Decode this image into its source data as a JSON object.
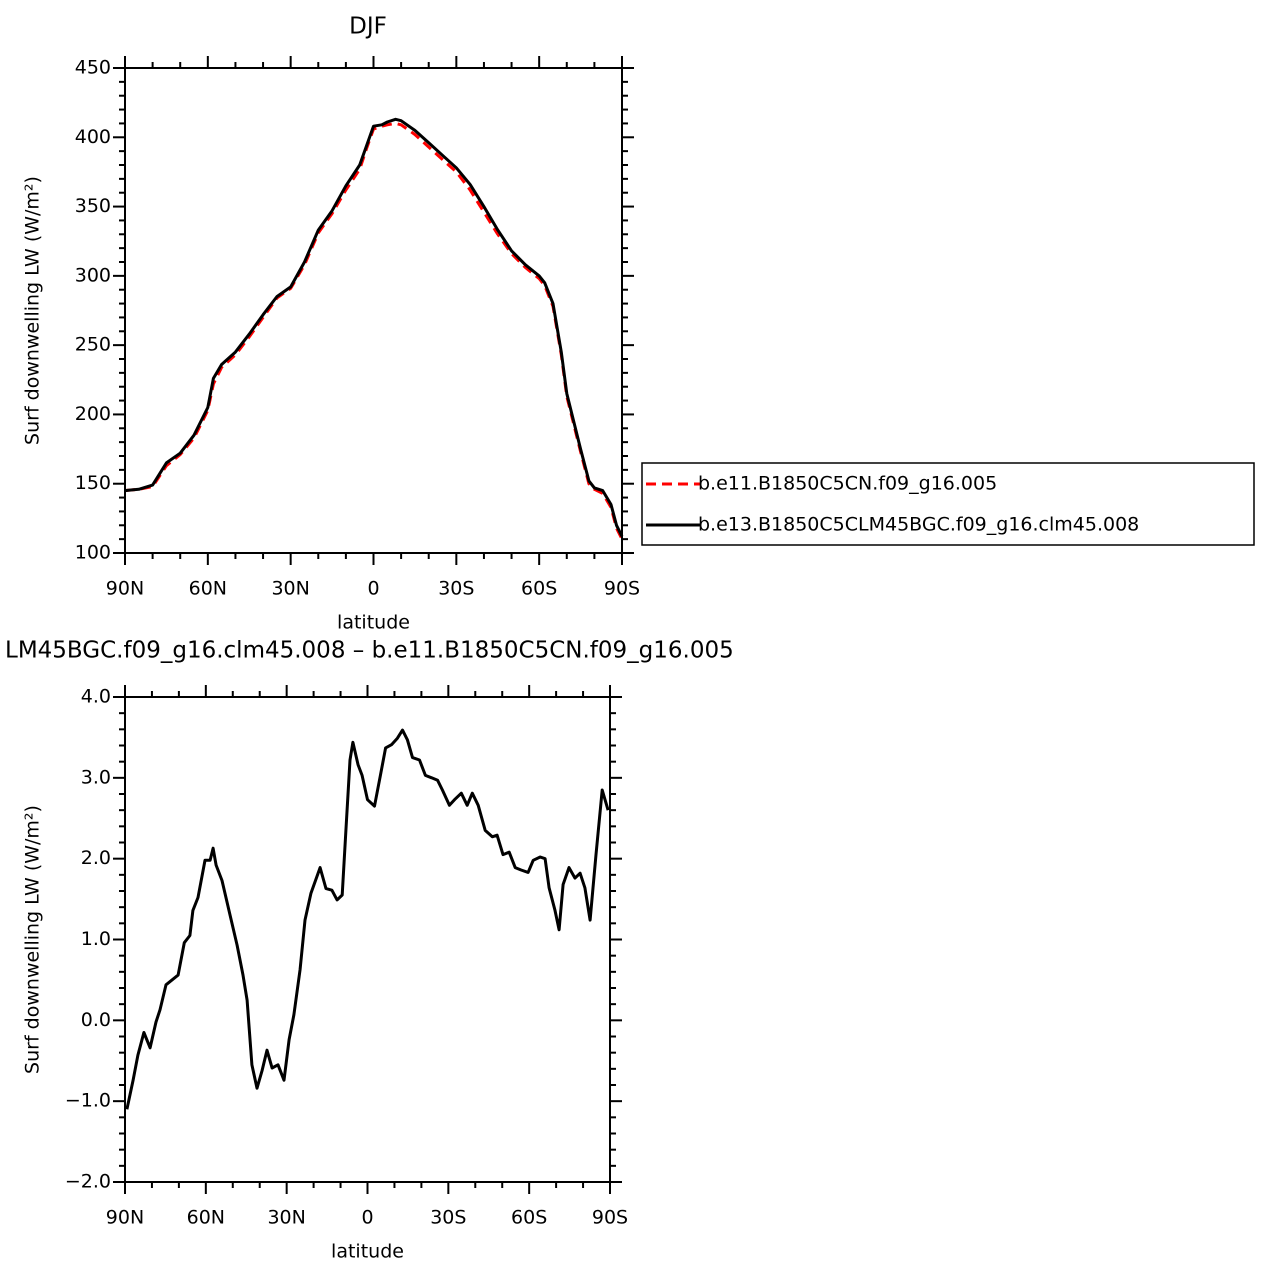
{
  "chart_data": [
    {
      "type": "line",
      "title": "DJF",
      "xlabel": "latitude",
      "ylabel": "Surf downwelling LW (W/m²)",
      "x": [
        90,
        85,
        80,
        75,
        70,
        65,
        60,
        58,
        55,
        50,
        45,
        40,
        35,
        30,
        25,
        20,
        15,
        10,
        5,
        2.5,
        0,
        -3,
        -5,
        -8,
        -10,
        -15,
        -20,
        -25,
        -30,
        -35,
        -40,
        -45,
        -50,
        -55,
        -60,
        -62,
        -65,
        -68,
        -70,
        -75,
        -78,
        -80,
        -83,
        -86,
        -88,
        -90
      ],
      "xlim": [
        90,
        -90
      ],
      "xticks": [
        {
          "value": 90,
          "label": "90N"
        },
        {
          "value": 60,
          "label": "60N"
        },
        {
          "value": 30,
          "label": "30N"
        },
        0,
        {
          "value": -30,
          "label": "30S"
        },
        {
          "value": -60,
          "label": "60S"
        },
        {
          "value": -90,
          "label": "90S"
        }
      ],
      "ylim": [
        100,
        450
      ],
      "yticks": [
        100,
        150,
        200,
        250,
        300,
        350,
        400,
        450
      ],
      "series": [
        {
          "name": "b.e11.B1850C5CN.f09_g16.005",
          "color": "#ff0000",
          "linestyle": "dashed",
          "values": [
            145,
            146,
            148,
            163,
            171,
            183,
            203,
            222,
            234,
            243,
            256,
            270,
            284,
            291,
            308,
            331,
            345,
            362,
            377,
            392,
            406,
            408,
            409,
            410,
            409,
            402,
            393,
            384,
            375,
            362,
            346,
            330,
            316,
            306,
            298,
            293,
            278,
            243,
            213,
            173,
            150,
            146,
            143,
            133,
            118,
            110
          ]
        },
        {
          "name": "b.e13.B1850C5CLM45BGC.f09_g16.clm45.008",
          "color": "#000000",
          "linestyle": "solid",
          "values": [
            145,
            146,
            149,
            165,
            172,
            185,
            205,
            226,
            236,
            245,
            258,
            272,
            285,
            292,
            310,
            333,
            347,
            365,
            380,
            394,
            408,
            409,
            411,
            413,
            412,
            405,
            396,
            387,
            378,
            366,
            350,
            333,
            318,
            308,
            300,
            295,
            280,
            245,
            215,
            175,
            152,
            147,
            145,
            135,
            120,
            112
          ]
        }
      ],
      "legend": "right"
    },
    {
      "type": "line",
      "title": "LM45BGC.f09_g16.clm45.008 – b.e11.B1850C5CN.f09_g16.005",
      "xlabel": "latitude",
      "ylabel": "Surf downwelling LW (W/m²)",
      "x": [
        89.3,
        87,
        85.2,
        83,
        80.7,
        78.5,
        77,
        74.8,
        70.3,
        68,
        65.9,
        64.8,
        62.9,
        60.3,
        58.4,
        57.3,
        56.2,
        54,
        51,
        48.4,
        46.2,
        44.7,
        42.9,
        41,
        39.1,
        37.3,
        35.4,
        33.2,
        31,
        29.1,
        27.3,
        25,
        23.2,
        21,
        17.6,
        15.4,
        13.2,
        11.3,
        9.4,
        8,
        6.5,
        5.4,
        3.5,
        2,
        0,
        -2.6,
        -4.8,
        -6.7,
        -8.9,
        -11.1,
        -13,
        -14.8,
        -16.7,
        -19.3,
        -21.5,
        -23.8,
        -26,
        -27.8,
        -30.4,
        -32.3,
        -34.8,
        -37,
        -38.9,
        -41.1,
        -43.7,
        -46.3,
        -48.1,
        -50.3,
        -52.6,
        -54.8,
        -57,
        -59.6,
        -61.5,
        -64.1,
        -65.9,
        -67.4,
        -69.6,
        -71.1,
        -72.6,
        -74.8,
        -77,
        -78.9,
        -80.7,
        -82.6,
        -84.8,
        -87.1,
        -89.3
      ],
      "xlim": [
        90,
        -90
      ],
      "xticks": [
        {
          "value": 90,
          "label": "90N"
        },
        {
          "value": 60,
          "label": "60N"
        },
        {
          "value": 30,
          "label": "30N"
        },
        0,
        {
          "value": -30,
          "label": "30S"
        },
        {
          "value": -60,
          "label": "60S"
        },
        {
          "value": -90,
          "label": "90S"
        }
      ],
      "ylim": [
        -2,
        4
      ],
      "yticks": [
        {
          "value": -2,
          "label": "−2.0"
        },
        {
          "value": -1,
          "label": "−1.0"
        },
        {
          "value": 0,
          "label": "0.0"
        },
        {
          "value": 1,
          "label": "1.0"
        },
        {
          "value": 2,
          "label": "2.0"
        },
        {
          "value": 3,
          "label": "3.0"
        },
        {
          "value": 4,
          "label": "4.0"
        }
      ],
      "series": [
        {
          "color": "#000000",
          "linestyle": "solid",
          "values": [
            -1.1,
            -0.74,
            -0.43,
            -0.15,
            -0.34,
            -0.02,
            0.13,
            0.44,
            0.56,
            0.96,
            1.05,
            1.36,
            1.52,
            1.98,
            1.98,
            2.13,
            1.92,
            1.73,
            1.3,
            0.93,
            0.56,
            0.25,
            -0.55,
            -0.84,
            -0.62,
            -0.37,
            -0.59,
            -0.55,
            -0.74,
            -0.24,
            0.07,
            0.63,
            1.24,
            1.57,
            1.89,
            1.63,
            1.61,
            1.49,
            1.55,
            2.35,
            3.22,
            3.44,
            3.16,
            3.03,
            2.73,
            2.65,
            3.03,
            3.37,
            3.41,
            3.49,
            3.59,
            3.47,
            3.25,
            3.22,
            3.03,
            3.0,
            2.97,
            2.85,
            2.66,
            2.73,
            2.81,
            2.66,
            2.81,
            2.66,
            2.35,
            2.27,
            2.29,
            2.05,
            2.08,
            1.89,
            1.86,
            1.83,
            1.98,
            2.02,
            2.0,
            1.64,
            1.36,
            1.12,
            1.68,
            1.89,
            1.76,
            1.82,
            1.64,
            1.24,
            2.05,
            2.85,
            2.6
          ]
        }
      ]
    }
  ]
}
